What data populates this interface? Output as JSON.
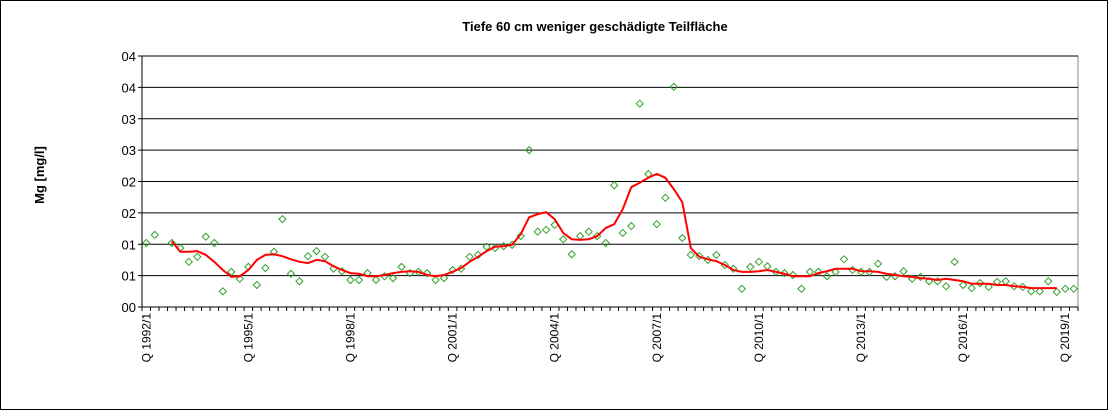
{
  "chart_data": {
    "type": "line",
    "title": "Tiefe  60 cm    weniger geschädigte Teilfläche",
    "y_label": "Mg [mg/l]",
    "categories": [
      "Q 1992/1",
      null,
      null,
      null,
      null,
      null,
      null,
      null,
      null,
      null,
      null,
      null,
      "Q 1995/1",
      null,
      null,
      null,
      null,
      null,
      null,
      null,
      null,
      null,
      null,
      null,
      "Q 1998/1",
      null,
      null,
      null,
      null,
      null,
      null,
      null,
      null,
      null,
      null,
      null,
      "Q 2001/1",
      null,
      null,
      null,
      null,
      null,
      null,
      null,
      null,
      null,
      null,
      null,
      "Q 2004/1",
      null,
      null,
      null,
      null,
      null,
      null,
      null,
      null,
      null,
      null,
      null,
      "Q 2007/1",
      null,
      null,
      null,
      null,
      null,
      null,
      null,
      null,
      null,
      null,
      null,
      "Q 2010/1",
      null,
      null,
      null,
      null,
      null,
      null,
      null,
      null,
      null,
      null,
      null,
      "Q 2013/1",
      null,
      null,
      null,
      null,
      null,
      null,
      null,
      null,
      null,
      null,
      null,
      "Q 2016/1",
      null,
      null,
      null,
      null,
      null,
      null,
      null,
      null,
      null,
      null,
      null,
      "Q 2019/1",
      null
    ],
    "series": [
      {
        "style": "markers",
        "color": "#33a02c",
        "values": [
          1.02,
          1.15,
          null,
          1.02,
          0.94,
          0.72,
          0.8,
          1.12,
          1.02,
          0.25,
          0.56,
          0.45,
          0.64,
          0.35,
          0.62,
          0.88,
          1.4,
          0.53,
          0.41,
          0.81,
          0.89,
          0.8,
          0.61,
          0.57,
          0.43,
          0.43,
          0.54,
          0.43,
          0.49,
          0.46,
          0.64,
          0.54,
          0.56,
          0.54,
          0.43,
          0.46,
          0.59,
          0.61,
          0.8,
          0.83,
          0.96,
          0.94,
          0.97,
          0.99,
          1.13,
          2.5,
          1.2,
          1.23,
          1.31,
          1.08,
          0.84,
          1.13,
          1.2,
          1.13,
          1.02,
          1.94,
          1.18,
          1.29,
          3.24,
          2.12,
          1.32,
          1.74,
          3.51,
          1.1,
          0.83,
          0.81,
          0.75,
          0.83,
          0.67,
          0.61,
          0.29,
          0.64,
          0.72,
          0.65,
          0.56,
          0.54,
          0.51,
          0.29,
          0.56,
          0.56,
          0.49,
          0.56,
          0.76,
          0.59,
          0.56,
          0.56,
          0.69,
          0.48,
          0.49,
          0.57,
          0.45,
          0.48,
          0.41,
          0.41,
          0.33,
          0.72,
          0.35,
          0.3,
          0.38,
          0.32,
          0.4,
          0.41,
          0.33,
          0.32,
          0.25,
          0.25,
          0.41,
          0.24,
          0.29,
          0.29
        ]
      },
      {
        "style": "line",
        "color": "#ff0000",
        "values": [
          null,
          null,
          null,
          1.05,
          0.88,
          0.88,
          0.89,
          0.83,
          0.72,
          0.59,
          0.48,
          0.49,
          0.59,
          0.75,
          0.83,
          0.84,
          0.81,
          0.76,
          0.72,
          0.7,
          0.75,
          0.73,
          0.65,
          0.59,
          0.54,
          0.53,
          0.49,
          0.49,
          0.51,
          0.54,
          0.56,
          0.57,
          0.56,
          0.51,
          0.49,
          0.51,
          0.56,
          0.62,
          0.72,
          0.8,
          0.89,
          0.96,
          0.97,
          0.99,
          1.16,
          1.43,
          1.48,
          1.51,
          1.4,
          1.18,
          1.08,
          1.07,
          1.08,
          1.13,
          1.26,
          1.32,
          1.56,
          1.91,
          1.98,
          2.06,
          2.12,
          2.06,
          1.88,
          1.67,
          0.94,
          0.8,
          0.76,
          0.73,
          0.67,
          0.59,
          0.56,
          0.56,
          0.57,
          0.59,
          0.56,
          0.53,
          0.49,
          0.49,
          0.49,
          0.54,
          0.57,
          0.61,
          0.61,
          0.61,
          0.57,
          0.57,
          0.56,
          0.53,
          0.51,
          0.49,
          0.48,
          0.46,
          0.45,
          0.43,
          0.45,
          0.43,
          0.41,
          0.37,
          0.37,
          0.37,
          0.35,
          0.35,
          0.33,
          0.32,
          0.3,
          0.3,
          0.3,
          0.3,
          null,
          null
        ]
      }
    ],
    "ylim": [
      0,
      4
    ],
    "yticks": [
      {
        "value": 0,
        "label": "00"
      },
      {
        "value": 0.5,
        "label": "01"
      },
      {
        "value": 1,
        "label": "01"
      },
      {
        "value": 1.5,
        "label": "02"
      },
      {
        "value": 2,
        "label": "02"
      },
      {
        "value": 2.5,
        "label": "03"
      },
      {
        "value": 3,
        "label": "03"
      },
      {
        "value": 3.5,
        "label": "04"
      },
      {
        "value": 4,
        "label": "04"
      }
    ],
    "grid": true
  }
}
